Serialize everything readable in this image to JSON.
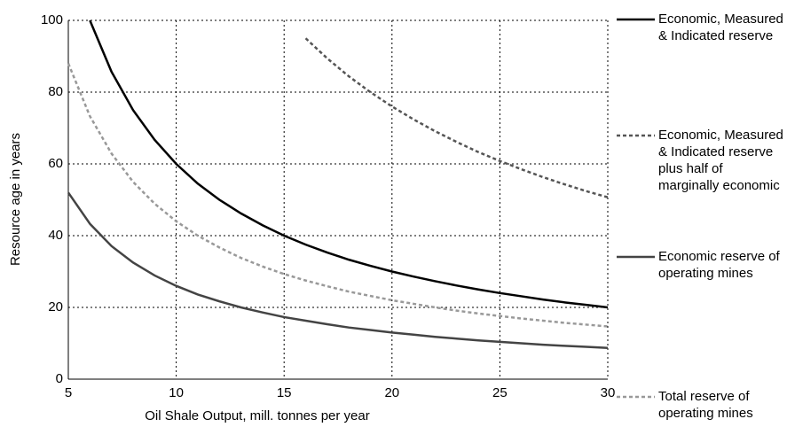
{
  "chart_data": {
    "type": "line",
    "x_label": "Oil Shale Output, mill. tonnes per year",
    "y_label": "Resource age in years",
    "x": [
      5,
      6,
      7,
      8,
      9,
      10,
      11,
      12,
      13,
      14,
      15,
      16,
      17,
      18,
      19,
      20,
      21,
      22,
      23,
      24,
      25,
      26,
      27,
      28,
      29,
      30
    ],
    "series": [
      {
        "name": "Economic, Measured & Indicated reserve",
        "color": "#000000",
        "dash": false,
        "values": [
          null,
          100,
          85.7,
          75,
          66.7,
          60,
          54.5,
          50,
          46.2,
          42.9,
          40,
          37.5,
          35.3,
          33.3,
          31.6,
          30,
          28.6,
          27.3,
          26.1,
          25,
          24,
          23.1,
          22.2,
          21.4,
          20.7,
          20
        ]
      },
      {
        "name": "Economic, Measured & Indicated reserve plus half of marginally economic",
        "color": "#555555",
        "dash": true,
        "values": [
          null,
          null,
          null,
          null,
          null,
          null,
          null,
          null,
          null,
          null,
          null,
          95,
          89.4,
          84.4,
          80,
          76,
          72.4,
          69.1,
          66.1,
          63.3,
          60.8,
          58.5,
          56.3,
          54.3,
          52.4,
          50.7
        ]
      },
      {
        "name": "Economic reserve of operating mines",
        "color": "#444444",
        "dash": false,
        "values": [
          52,
          43.3,
          37.1,
          32.5,
          28.9,
          26,
          23.6,
          21.7,
          20,
          18.6,
          17.3,
          16.3,
          15.3,
          14.4,
          13.7,
          13,
          12.4,
          11.8,
          11.3,
          10.8,
          10.4,
          10,
          9.6,
          9.3,
          9,
          8.7
        ]
      },
      {
        "name": "Total reserve of operating mines",
        "color": "#999999",
        "dash": true,
        "values": [
          88,
          73.3,
          62.9,
          55,
          48.9,
          44,
          40,
          36.7,
          33.8,
          31.4,
          29.3,
          27.5,
          25.9,
          24.4,
          23.2,
          22,
          21,
          20,
          19.1,
          18.3,
          17.6,
          16.9,
          16.3,
          15.7,
          15.2,
          14.7
        ]
      }
    ],
    "xlim": [
      5,
      30
    ],
    "xticks": [
      5,
      10,
      15,
      20,
      25,
      30
    ],
    "ylim": [
      0,
      100
    ],
    "yticks": [
      0,
      20,
      40,
      60,
      80,
      100
    ],
    "grid": true,
    "legend": "right"
  }
}
